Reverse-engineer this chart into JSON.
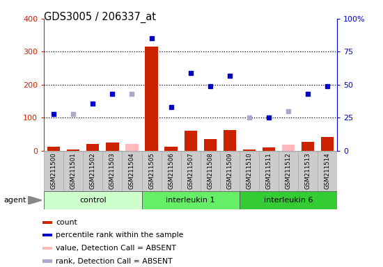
{
  "title": "GDS3005 / 206337_at",
  "samples": [
    "GSM211500",
    "GSM211501",
    "GSM211502",
    "GSM211503",
    "GSM211504",
    "GSM211505",
    "GSM211506",
    "GSM211507",
    "GSM211508",
    "GSM211509",
    "GSM211510",
    "GSM211511",
    "GSM211512",
    "GSM211513",
    "GSM211514"
  ],
  "count_values": [
    12,
    5,
    20,
    25,
    22,
    315,
    12,
    60,
    35,
    62,
    5,
    10,
    18,
    28,
    42
  ],
  "count_absent": [
    false,
    false,
    false,
    false,
    true,
    false,
    false,
    false,
    false,
    false,
    false,
    false,
    true,
    false,
    false
  ],
  "rank_values": [
    28,
    28,
    36,
    43,
    43,
    85,
    33,
    59,
    49,
    57,
    25,
    25,
    30,
    43,
    49
  ],
  "rank_absent": [
    false,
    true,
    false,
    false,
    true,
    false,
    false,
    false,
    false,
    false,
    true,
    false,
    true,
    false,
    false
  ],
  "groups": [
    {
      "label": "control",
      "start": 0,
      "end": 5,
      "color": "#ccffcc"
    },
    {
      "label": "interleukin 1",
      "start": 5,
      "end": 10,
      "color": "#66ee66"
    },
    {
      "label": "interleukin 6",
      "start": 10,
      "end": 15,
      "color": "#33cc33"
    }
  ],
  "ylim_left": [
    0,
    400
  ],
  "ylim_right": [
    0,
    100
  ],
  "yticks_left": [
    0,
    100,
    200,
    300,
    400
  ],
  "yticks_right": [
    0,
    25,
    50,
    75,
    100
  ],
  "yticklabels_right": [
    "0",
    "25",
    "50",
    "75",
    "100%"
  ],
  "grid_lines": [
    100,
    200,
    300
  ],
  "bar_color": "#cc2200",
  "bar_absent_color": "#ffbbbb",
  "rank_color": "#0000cc",
  "rank_absent_color": "#aaaacc",
  "plot_bg": "#ffffff",
  "legend_items": [
    {
      "label": "count",
      "color": "#cc2200"
    },
    {
      "label": "percentile rank within the sample",
      "color": "#0000cc"
    },
    {
      "label": "value, Detection Call = ABSENT",
      "color": "#ffbbbb"
    },
    {
      "label": "rank, Detection Call = ABSENT",
      "color": "#aaaacc"
    }
  ]
}
